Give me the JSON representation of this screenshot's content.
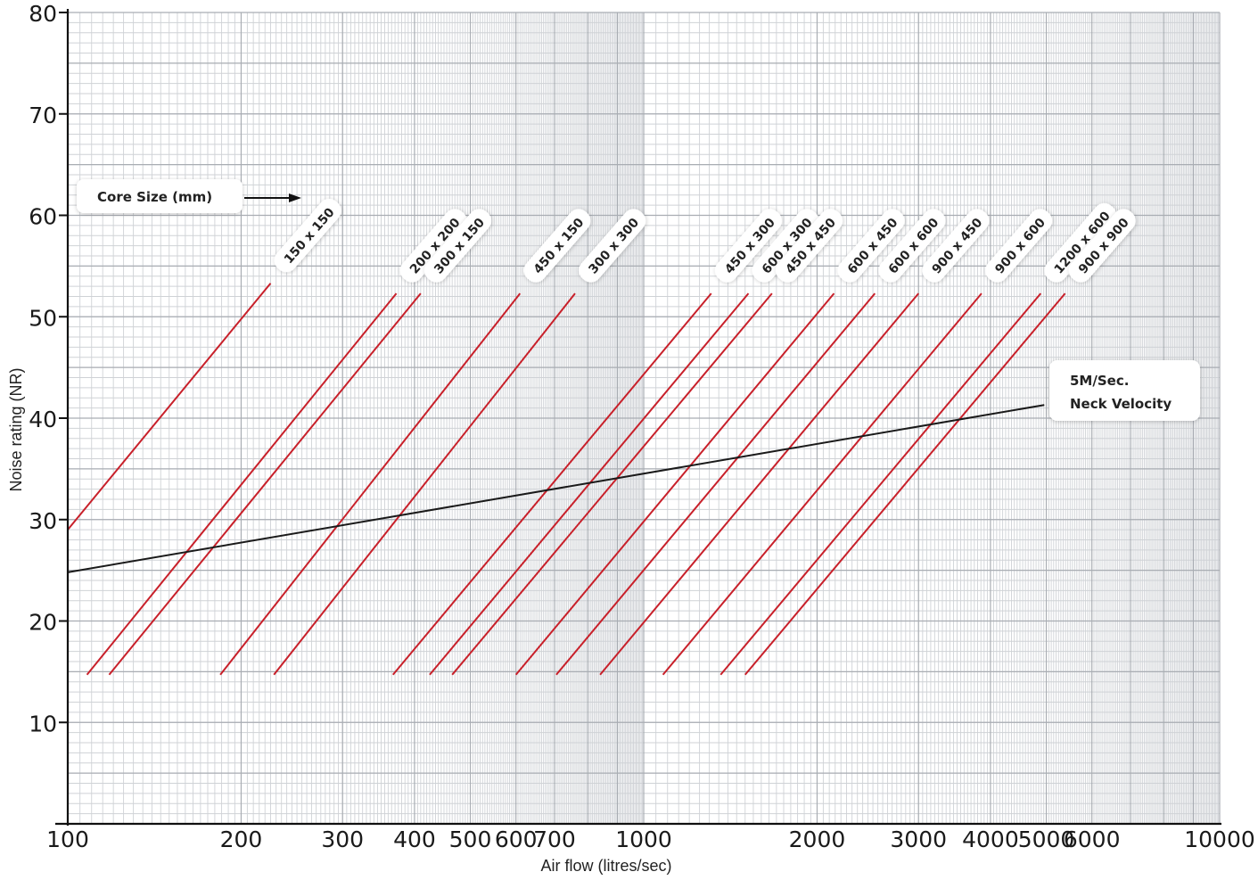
{
  "chart_data": {
    "type": "line",
    "xscale": "log",
    "xlim": [
      100,
      10000
    ],
    "ylim": [
      0,
      80
    ],
    "grid": true,
    "xlabel": "Air flow (litres/sec)",
    "ylabel": "Noise rating (NR)",
    "x_ticks": [
      100,
      200,
      300,
      400,
      500,
      600,
      700,
      1000,
      2000,
      3000,
      4000,
      5000,
      6000,
      10000
    ],
    "x_tick_labels": [
      "100",
      "200",
      "300",
      "400",
      "500",
      "600",
      "700",
      "1000",
      "2000",
      "3000",
      "4000",
      "5000",
      "6000",
      "10000"
    ],
    "y_ticks": [
      10,
      20,
      30,
      40,
      50,
      60,
      70,
      80
    ],
    "y_tick_labels": [
      "10",
      "20",
      "30",
      "40",
      "50",
      "60",
      "70",
      "80"
    ],
    "legend_title": "Core Size (mm)",
    "series": [
      {
        "name": "150 x 150",
        "color": "#c8202a",
        "points": [
          [
            100,
            29.0
          ],
          [
            225,
            53.3
          ]
        ]
      },
      {
        "name": "200 x 200",
        "color": "#c8202a",
        "points": [
          [
            108,
            14.7
          ],
          [
            372,
            52.3
          ]
        ]
      },
      {
        "name": "300 x 150",
        "color": "#c8202a",
        "points": [
          [
            118,
            14.7
          ],
          [
            410,
            52.3
          ]
        ]
      },
      {
        "name": "450 x 150",
        "color": "#c8202a",
        "points": [
          [
            184,
            14.7
          ],
          [
            610,
            52.3
          ]
        ]
      },
      {
        "name": "300 x 300",
        "color": "#c8202a",
        "points": [
          [
            228,
            14.7
          ],
          [
            760,
            52.3
          ]
        ]
      },
      {
        "name": "450 x 300",
        "color": "#c8202a",
        "points": [
          [
            367,
            14.7
          ],
          [
            1310,
            52.3
          ]
        ]
      },
      {
        "name": "600 x 300",
        "color": "#c8202a",
        "points": [
          [
            425,
            14.7
          ],
          [
            1520,
            52.3
          ]
        ]
      },
      {
        "name": "450 x 450",
        "color": "#c8202a",
        "points": [
          [
            465,
            14.7
          ],
          [
            1670,
            52.3
          ]
        ]
      },
      {
        "name": "600 x 450",
        "color": "#c8202a",
        "points": [
          [
            600,
            14.7
          ],
          [
            2140,
            52.3
          ]
        ]
      },
      {
        "name": "600 x 600",
        "color": "#c8202a",
        "points": [
          [
            705,
            14.7
          ],
          [
            2520,
            52.3
          ]
        ]
      },
      {
        "name": "900 x 450",
        "color": "#c8202a",
        "points": [
          [
            840,
            14.7
          ],
          [
            3000,
            52.3
          ]
        ]
      },
      {
        "name": "900 x 600",
        "color": "#c8202a",
        "points": [
          [
            1080,
            14.7
          ],
          [
            3860,
            52.3
          ]
        ]
      },
      {
        "name": "1200 x 600",
        "color": "#c8202a",
        "points": [
          [
            1360,
            14.7
          ],
          [
            4890,
            52.3
          ]
        ]
      },
      {
        "name": "900 x 900",
        "color": "#c8202a",
        "points": [
          [
            1500,
            14.7
          ],
          [
            5390,
            52.3
          ]
        ]
      },
      {
        "name": "5M/Sec. Neck Velocity",
        "label_lines": [
          "5M/Sec.",
          "Neck Velocity"
        ],
        "color": "#1a1a1a",
        "points": [
          [
            100,
            24.8
          ],
          [
            4960,
            41.3
          ]
        ]
      }
    ]
  }
}
